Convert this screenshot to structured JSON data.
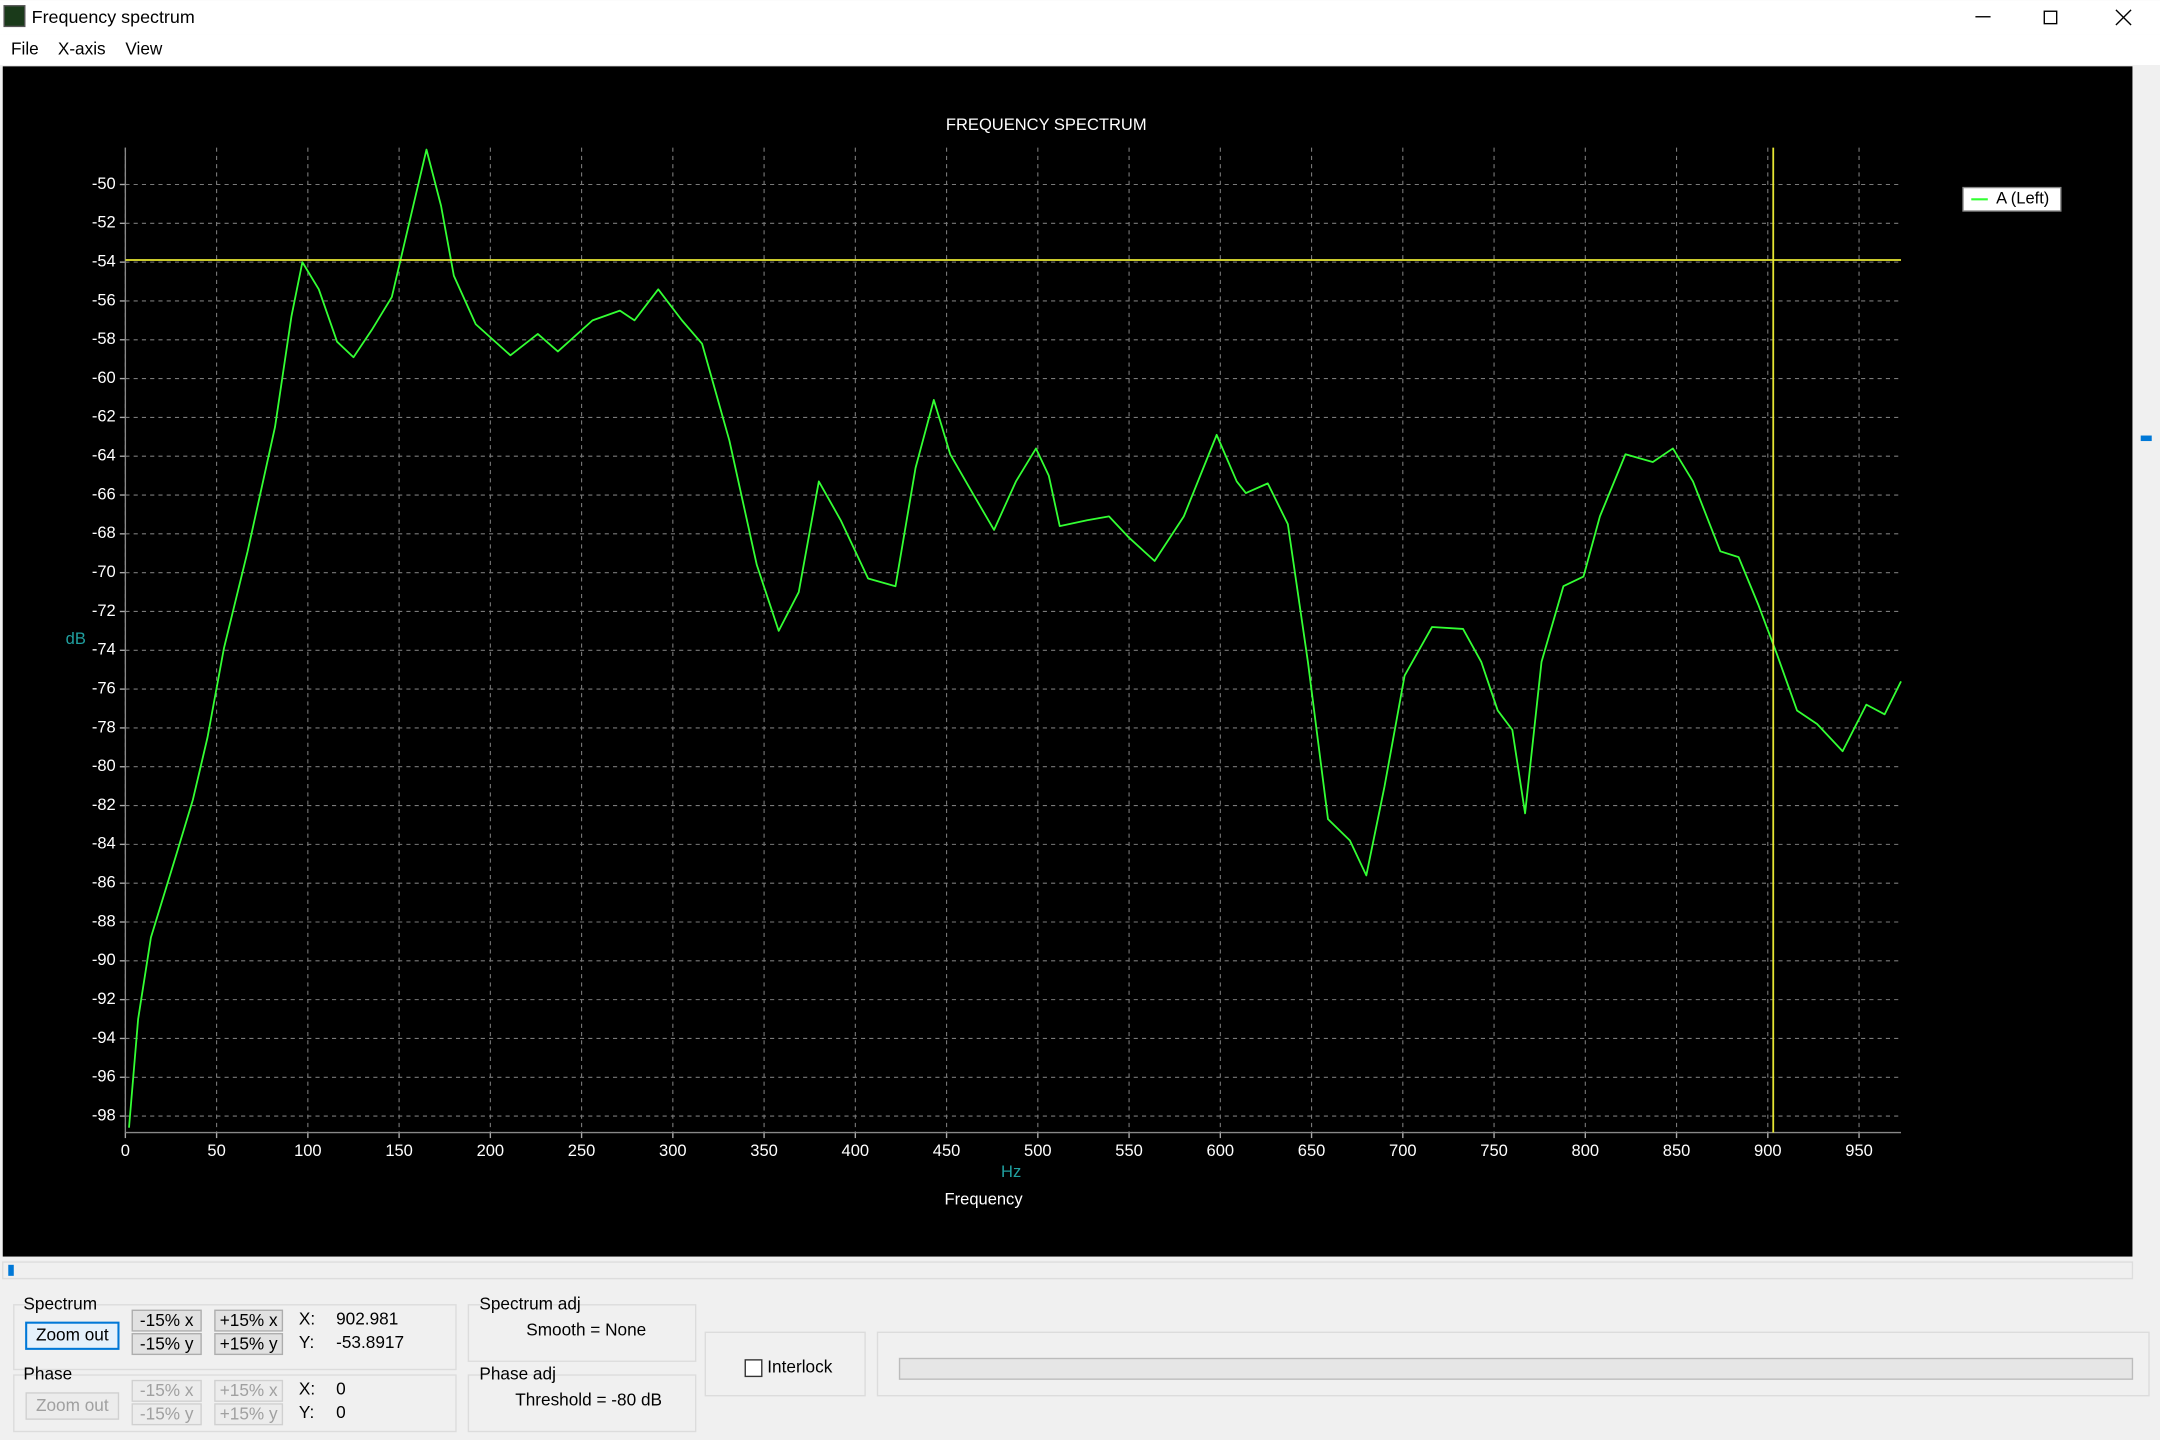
{
  "window": {
    "title": "Frequency spectrum",
    "menu": [
      "File",
      "X-axis",
      "View"
    ]
  },
  "chart_data": {
    "type": "line",
    "title": "FREQUENCY SPECTRUM",
    "x_label": "Frequency",
    "x_unit": "Hz",
    "y_label": "dB",
    "x": [
      2,
      7,
      14,
      28,
      37,
      45,
      54,
      67,
      82,
      91,
      97,
      106,
      116,
      125,
      135,
      146,
      154,
      165,
      173,
      180,
      192,
      211,
      226,
      237,
      256,
      271,
      279,
      292,
      305,
      316,
      331,
      346,
      358,
      369,
      380,
      392,
      407,
      422,
      433,
      443,
      452,
      463,
      476,
      488,
      499,
      506,
      512,
      527,
      539,
      550,
      564,
      580,
      598,
      609,
      614,
      626,
      637,
      648,
      659,
      671,
      680,
      690,
      701,
      716,
      733,
      743,
      752,
      760,
      767,
      776,
      788,
      799,
      808,
      822,
      837,
      848,
      859,
      874,
      884,
      895,
      905,
      916,
      927,
      941,
      954,
      964,
      973
    ],
    "series": [
      {
        "name": "A (Left)",
        "color": "#33ff33",
        "values": [
          -98.6,
          -93.0,
          -88.8,
          -84.5,
          -81.7,
          -78.5,
          -73.9,
          -68.9,
          -62.5,
          -56.8,
          -54.0,
          -55.4,
          -58.1,
          -58.9,
          -57.5,
          -55.8,
          -52.6,
          -48.2,
          -51.1,
          -54.7,
          -57.2,
          -58.8,
          -57.7,
          -58.6,
          -57.0,
          -56.5,
          -57.0,
          -55.4,
          -57.0,
          -58.2,
          -63.2,
          -69.6,
          -73.0,
          -71.0,
          -65.3,
          -67.3,
          -70.3,
          -70.7,
          -64.6,
          -61.1,
          -63.9,
          -65.7,
          -67.8,
          -65.3,
          -63.6,
          -65.0,
          -67.6,
          -67.3,
          -67.1,
          -68.2,
          -69.4,
          -67.1,
          -62.9,
          -65.3,
          -65.9,
          -65.4,
          -67.5,
          -74.6,
          -82.7,
          -83.8,
          -85.6,
          -81.0,
          -75.3,
          -72.8,
          -72.9,
          -74.6,
          -77.1,
          -78.1,
          -82.4,
          -74.6,
          -70.7,
          -70.2,
          -67.1,
          -63.9,
          -64.3,
          -63.6,
          -65.3,
          -68.9,
          -69.2,
          -71.7,
          -74.2,
          -77.1,
          -77.8,
          -79.2,
          -76.8,
          -77.3,
          -75.6
        ]
      }
    ],
    "xlim": [
      0,
      973
    ],
    "ylim": [
      -98.85,
      -48.1
    ],
    "xticks": [
      0,
      50,
      100,
      150,
      200,
      250,
      300,
      350,
      400,
      450,
      500,
      550,
      600,
      650,
      700,
      750,
      800,
      850,
      900,
      950
    ],
    "yticks": [
      -98,
      -96,
      -94,
      -92,
      -90,
      -88,
      -86,
      -84,
      -82,
      -80,
      -78,
      -76,
      -74,
      -72,
      -70,
      -68,
      -66,
      -64,
      -62,
      -60,
      -58,
      -56,
      -54,
      -52,
      -50
    ],
    "grid": true,
    "legend": "upper right",
    "cursor": {
      "x": 902.981,
      "y": -53.8917,
      "color": "#e6e633"
    }
  },
  "panels": {
    "spectrum": {
      "title": "Spectrum",
      "zoom": "Zoom out",
      "buttons": [
        "-15% x",
        "+15% x",
        "-15% y",
        "+15% y"
      ],
      "x_label": "X:",
      "y_label": "Y:"
    },
    "phase": {
      "title": "Phase",
      "zoom": "Zoom out",
      "buttons": [
        "-15% x",
        "+15% x",
        "-15% y",
        "+15% y"
      ],
      "x_label": "X:",
      "y_label": "Y:",
      "x": 0,
      "y": 0
    },
    "spectrum_adj": {
      "title": "Spectrum adj",
      "text": "Smooth = None"
    },
    "phase_adj": {
      "title": "Phase adj",
      "text": "Threshold = -80 dB"
    },
    "interlock": "Interlock"
  }
}
